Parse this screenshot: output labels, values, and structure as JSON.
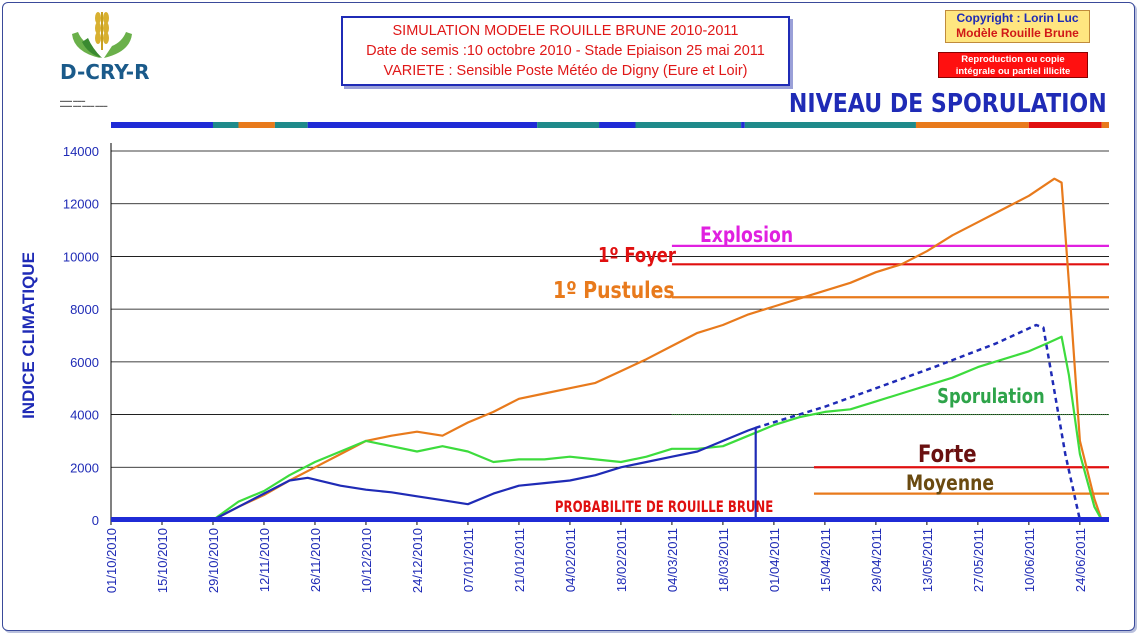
{
  "header": {
    "title_lines": [
      "SIMULATION MODELE ROUILLE BRUNE 2010-2011",
      "Date de semis :10 octobre 2010 - Stade Epiaison 25 mai 2011",
      "VARIETE : Sensible   Poste Météo de Digny (Eure et Loir)"
    ],
    "copyright_1": "Copyright : Lorin Luc",
    "copyright_2": "Modèle Rouille Brune",
    "repro_1": "Reproduction ou copie",
    "repro_2": "intégrale ou partiel illicite",
    "logo_text": "D-CRY-R"
  },
  "chart_data": {
    "type": "line",
    "title": "NIVEAU DE SPORULATION",
    "ylabel": "INDICE CLIMATIQUE",
    "xlabel": "",
    "ylim": [
      0,
      14000
    ],
    "yticks": [
      0,
      2000,
      4000,
      6000,
      8000,
      10000,
      12000,
      14000
    ],
    "x_start": "01/10/2010",
    "x_end": "02/07/2011",
    "xticks": [
      "01/10/2010",
      "15/10/2010",
      "29/10/2010",
      "12/11/2010",
      "26/11/2010",
      "10/12/2010",
      "24/12/2010",
      "07/01/2011",
      "21/01/2011",
      "04/02/2011",
      "18/02/2011",
      "04/03/2011",
      "18/03/2011",
      "01/04/2011",
      "15/04/2011",
      "29/04/2011",
      "13/05/2011",
      "27/05/2011",
      "10/06/2011",
      "24/06/2011"
    ],
    "grid": true,
    "series": [
      {
        "name": "",
        "color": "#e87a1c",
        "points": [
          [
            "01/10/2010",
            0
          ],
          [
            "29/10/2010",
            0
          ],
          [
            "05/11/2010",
            500
          ],
          [
            "12/11/2010",
            950
          ],
          [
            "19/11/2010",
            1500
          ],
          [
            "26/11/2010",
            2000
          ],
          [
            "03/12/2010",
            2500
          ],
          [
            "10/12/2010",
            3000
          ],
          [
            "17/12/2010",
            3200
          ],
          [
            "24/12/2010",
            3350
          ],
          [
            "31/12/2010",
            3200
          ],
          [
            "07/01/2011",
            3700
          ],
          [
            "14/01/2011",
            4100
          ],
          [
            "21/01/2011",
            4600
          ],
          [
            "28/01/2011",
            4800
          ],
          [
            "04/02/2011",
            5000
          ],
          [
            "11/02/2011",
            5200
          ],
          [
            "18/02/2011",
            5650
          ],
          [
            "25/02/2011",
            6100
          ],
          [
            "04/03/2011",
            6600
          ],
          [
            "11/03/2011",
            7100
          ],
          [
            "18/03/2011",
            7400
          ],
          [
            "25/03/2011",
            7800
          ],
          [
            "01/04/2011",
            8100
          ],
          [
            "08/04/2011",
            8400
          ],
          [
            "15/04/2011",
            8700
          ],
          [
            "22/04/2011",
            9000
          ],
          [
            "29/04/2011",
            9400
          ],
          [
            "06/05/2011",
            9700
          ],
          [
            "13/05/2011",
            10200
          ],
          [
            "20/05/2011",
            10800
          ],
          [
            "27/05/2011",
            11300
          ],
          [
            "03/06/2011",
            11800
          ],
          [
            "10/06/2011",
            12300
          ],
          [
            "17/06/2011",
            12950
          ],
          [
            "19/06/2011",
            12800
          ],
          [
            "21/06/2011",
            9000
          ],
          [
            "24/06/2011",
            3000
          ],
          [
            "28/06/2011",
            800
          ],
          [
            "30/06/2011",
            0
          ]
        ]
      },
      {
        "name": "Sporulation",
        "color": "#3ddc3d",
        "points": [
          [
            "01/10/2010",
            0
          ],
          [
            "29/10/2010",
            0
          ],
          [
            "05/11/2010",
            700
          ],
          [
            "12/11/2010",
            1100
          ],
          [
            "19/11/2010",
            1700
          ],
          [
            "26/11/2010",
            2200
          ],
          [
            "03/12/2010",
            2600
          ],
          [
            "10/12/2010",
            3000
          ],
          [
            "17/12/2010",
            2800
          ],
          [
            "24/12/2010",
            2600
          ],
          [
            "31/12/2010",
            2800
          ],
          [
            "07/01/2011",
            2600
          ],
          [
            "14/01/2011",
            2200
          ],
          [
            "21/01/2011",
            2300
          ],
          [
            "28/01/2011",
            2300
          ],
          [
            "04/02/2011",
            2400
          ],
          [
            "11/02/2011",
            2300
          ],
          [
            "18/02/2011",
            2200
          ],
          [
            "25/02/2011",
            2400
          ],
          [
            "04/03/2011",
            2700
          ],
          [
            "11/03/2011",
            2700
          ],
          [
            "18/03/2011",
            2800
          ],
          [
            "25/03/2011",
            3200
          ],
          [
            "01/04/2011",
            3600
          ],
          [
            "08/04/2011",
            3900
          ],
          [
            "15/04/2011",
            4100
          ],
          [
            "22/04/2011",
            4200
          ],
          [
            "29/04/2011",
            4500
          ],
          [
            "06/05/2011",
            4800
          ],
          [
            "13/05/2011",
            5100
          ],
          [
            "20/05/2011",
            5400
          ],
          [
            "27/05/2011",
            5800
          ],
          [
            "03/06/2011",
            6100
          ],
          [
            "10/06/2011",
            6400
          ],
          [
            "15/06/2011",
            6700
          ],
          [
            "19/06/2011",
            6950
          ],
          [
            "21/06/2011",
            5500
          ],
          [
            "24/06/2011",
            2500
          ],
          [
            "28/06/2011",
            500
          ],
          [
            "30/06/2011",
            0
          ]
        ]
      },
      {
        "name": "",
        "color": "#1f2bb6",
        "points": [
          [
            "01/10/2010",
            0
          ],
          [
            "29/10/2010",
            0
          ],
          [
            "05/11/2010",
            500
          ],
          [
            "12/11/2010",
            1000
          ],
          [
            "19/11/2010",
            1500
          ],
          [
            "24/11/2010",
            1600
          ],
          [
            "03/12/2010",
            1300
          ],
          [
            "10/12/2010",
            1150
          ],
          [
            "17/12/2010",
            1050
          ],
          [
            "24/12/2010",
            900
          ],
          [
            "31/12/2010",
            750
          ],
          [
            "07/01/2011",
            600
          ],
          [
            "14/01/2011",
            1000
          ],
          [
            "21/01/2011",
            1300
          ],
          [
            "28/01/2011",
            1400
          ],
          [
            "04/02/2011",
            1500
          ],
          [
            "11/02/2011",
            1700
          ],
          [
            "18/02/2011",
            2000
          ],
          [
            "25/02/2011",
            2200
          ],
          [
            "04/03/2011",
            2400
          ],
          [
            "11/03/2011",
            2600
          ],
          [
            "18/03/2011",
            3000
          ],
          [
            "25/03/2011",
            3400
          ],
          [
            "27/03/2011",
            3500
          ],
          [
            "27/03/2011",
            0
          ],
          [
            "02/07/2011",
            0
          ]
        ]
      },
      {
        "name": "",
        "color": "#1f2bb6",
        "dashed": true,
        "points": [
          [
            "27/03/2011",
            3500
          ],
          [
            "15/04/2011",
            4300
          ],
          [
            "01/05/2011",
            5100
          ],
          [
            "15/05/2011",
            5800
          ],
          [
            "01/06/2011",
            6700
          ],
          [
            "12/06/2011",
            7400
          ],
          [
            "14/06/2011",
            7300
          ],
          [
            "20/06/2011",
            2500
          ],
          [
            "24/06/2011",
            0
          ]
        ]
      }
    ],
    "thresholds": [
      {
        "label": "Explosion",
        "value": 10400,
        "color": "#e020e0",
        "from": "04/03/2011"
      },
      {
        "label": "1º Foyer",
        "value": 9700,
        "color": "#e01010",
        "from": "04/03/2011"
      },
      {
        "label": "1º Pustules",
        "value": 8450,
        "color": "#e87a1c",
        "from": "04/03/2011"
      },
      {
        "label": "",
        "value": 4000,
        "color": "#3a9a3a",
        "from": "04/03/2011",
        "dotted": true
      },
      {
        "label": "Forte",
        "value": 2000,
        "color": "#e01010",
        "from": "12/04/2011"
      },
      {
        "label": "Moyenne",
        "value": 1000,
        "color": "#e87a1c",
        "from": "12/04/2011"
      }
    ],
    "annotations": {
      "sporulation": "Sporulation",
      "probabilite": "PROBABILITE DE ROUILLE BRUNE"
    },
    "risk_strip": [
      {
        "from": "01/10/2010",
        "to": "29/10/2010",
        "color": "#1f2bd6"
      },
      {
        "from": "29/10/2010",
        "to": "05/11/2010",
        "color": "#1f8a8a"
      },
      {
        "from": "05/11/2010",
        "to": "15/11/2010",
        "color": "#e87a1c"
      },
      {
        "from": "15/11/2010",
        "to": "24/11/2010",
        "color": "#1f8a8a"
      },
      {
        "from": "24/11/2010",
        "to": "26/01/2011",
        "color": "#1f2bd6"
      },
      {
        "from": "26/01/2011",
        "to": "12/02/2011",
        "color": "#1f8a8a"
      },
      {
        "from": "12/02/2011",
        "to": "22/02/2011",
        "color": "#1f2bd6"
      },
      {
        "from": "22/02/2011",
        "to": "23/03/2011",
        "color": "#1f8a8a"
      },
      {
        "from": "23/03/2011",
        "to": "24/03/2011",
        "color": "#1f2bd6"
      },
      {
        "from": "24/03/2011",
        "to": "10/05/2011",
        "color": "#1f8a8a"
      },
      {
        "from": "10/05/2011",
        "to": "10/06/2011",
        "color": "#e87a1c"
      },
      {
        "from": "10/06/2011",
        "to": "30/06/2011",
        "color": "#e01010"
      },
      {
        "from": "30/06/2011",
        "to": "02/07/2011",
        "color": "#e87a1c"
      }
    ],
    "baseline_color": "#1f2bd6"
  }
}
